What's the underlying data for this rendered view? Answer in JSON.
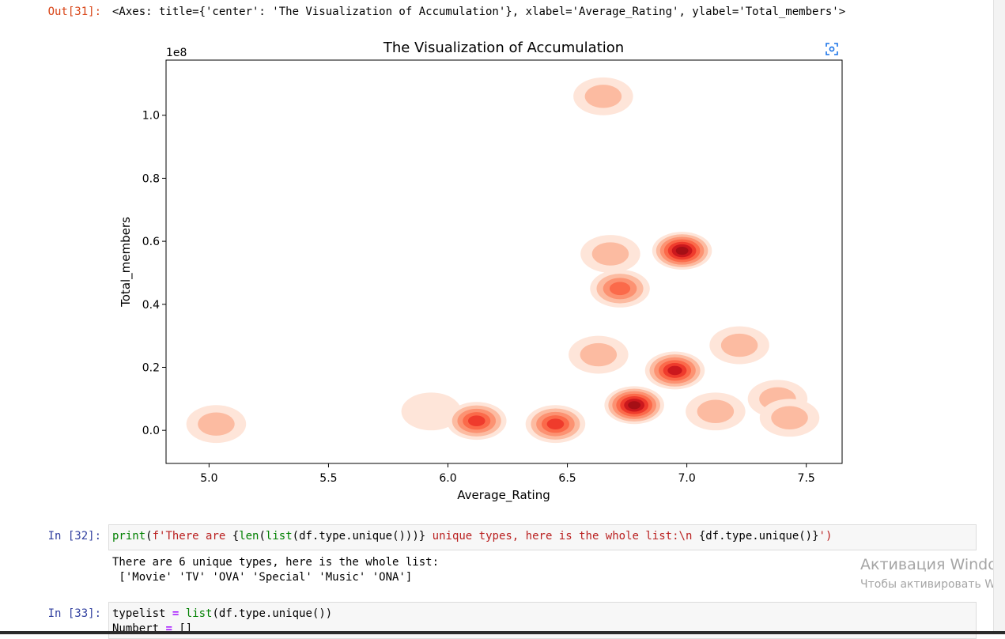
{
  "cells": {
    "out31": {
      "prompt": "Out[31]:",
      "repr": "<Axes: title={'center': 'The Visualization of Accumulation'}, xlabel='Average_Rating', ylabel='Total_members'>"
    },
    "in32": {
      "prompt": "In [32]:",
      "code_tokens": [
        "print",
        "(",
        "f'There are ",
        "{",
        "len",
        "(",
        "list",
        "(df.type.unique()))",
        "}",
        " unique types, here is the whole list:\\n ",
        "{df.type.unique()}",
        "')"
      ],
      "output_line1": "There are 6 unique types, here is the whole list:",
      "output_line2": " ['Movie' 'TV' 'OVA' 'Special' 'Music' 'ONA']"
    },
    "in33": {
      "prompt": "In [33]:",
      "line1_a": "typelist",
      "line1_op": "=",
      "line1_fn": "list",
      "line1_rest": "(df.type.unique())",
      "line2_a": "Numbert",
      "line2_op": "=",
      "line2_rest": "[]"
    }
  },
  "chart_data": {
    "type": "heatmap",
    "subtype": "kde-density",
    "title": "The Visualization of Accumulation",
    "xlabel": "Average_Rating",
    "ylabel": "Total_members",
    "y_offset_text": "1e8",
    "xlim": [
      4.82,
      7.65
    ],
    "ylim": [
      -0.105,
      1.175
    ],
    "y_scale_multiplier": 100000000,
    "xticks": [
      5.0,
      5.5,
      6.0,
      6.5,
      7.0,
      7.5
    ],
    "xtick_labels": [
      "5.0",
      "5.5",
      "6.0",
      "6.5",
      "7.0",
      "7.5"
    ],
    "yticks": [
      0.0,
      0.2,
      0.4,
      0.6,
      0.8,
      1.0
    ],
    "ytick_labels": [
      "0.0",
      "0.2",
      "0.4",
      "0.6",
      "0.8",
      "1.0"
    ],
    "colormap": "Reds",
    "colors": [
      "#fee5d9",
      "#fcbba1",
      "#fc9272",
      "#fb6a4a",
      "#ef3b2c",
      "#cb181d",
      "#a50f15"
    ],
    "density_clusters": [
      {
        "x": 5.03,
        "y": 0.02,
        "peak_level": 1
      },
      {
        "x": 6.65,
        "y": 1.06,
        "peak_level": 1
      },
      {
        "x": 6.68,
        "y": 0.56,
        "peak_level": 1
      },
      {
        "x": 6.98,
        "y": 0.57,
        "peak_level": 6
      },
      {
        "x": 6.72,
        "y": 0.45,
        "peak_level": 3
      },
      {
        "x": 5.93,
        "y": 0.06,
        "peak_level": 0
      },
      {
        "x": 6.12,
        "y": 0.03,
        "peak_level": 4
      },
      {
        "x": 6.45,
        "y": 0.02,
        "peak_level": 4
      },
      {
        "x": 6.78,
        "y": 0.08,
        "peak_level": 6
      },
      {
        "x": 6.95,
        "y": 0.19,
        "peak_level": 5
      },
      {
        "x": 6.63,
        "y": 0.24,
        "peak_level": 1
      },
      {
        "x": 7.22,
        "y": 0.27,
        "peak_level": 1
      },
      {
        "x": 7.12,
        "y": 0.06,
        "peak_level": 1
      },
      {
        "x": 7.38,
        "y": 0.1,
        "peak_level": 1
      },
      {
        "x": 7.43,
        "y": 0.04,
        "peak_level": 1
      }
    ]
  },
  "watermark": {
    "line1": "Активация Windov",
    "line2": "Чтобы активировать Wind"
  }
}
